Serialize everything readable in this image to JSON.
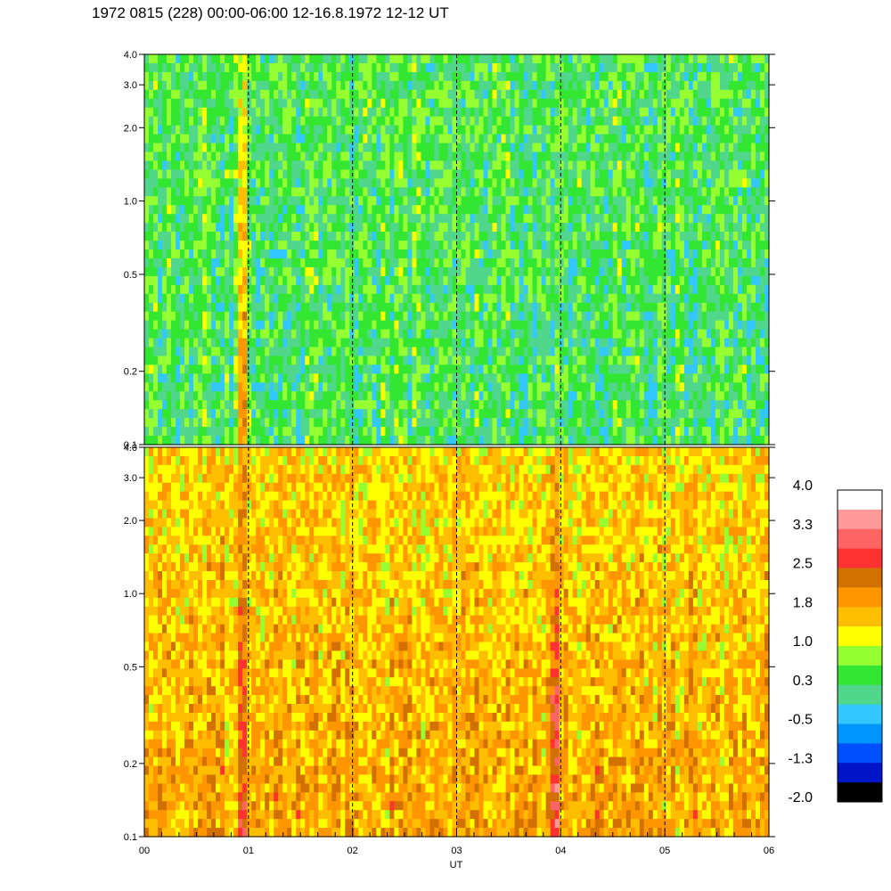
{
  "title": "1972 0815 (228) 00:00-06:00 12-16.8.1972  12-12 UT",
  "chart_data": {
    "type": "heatmap",
    "title": "1972 0815 (228) 00:00-06:00 12-16.8.1972  12-12 UT",
    "xlabel": "UT",
    "x_ticks": [
      "00",
      "01",
      "02",
      "03",
      "04",
      "05",
      "06"
    ],
    "x_range_hours": [
      0,
      6
    ],
    "marker_hours": [
      1,
      2,
      3,
      4,
      5
    ],
    "y_scale": "log",
    "ylim": [
      0.1,
      4.0
    ],
    "y_ticks": [
      0.1,
      0.2,
      0.5,
      1.0,
      2.0,
      3.0,
      4.0
    ],
    "y_tick_labels": [
      "0.1",
      "0.2",
      "0.5",
      "1.0",
      "2.0",
      "3.0",
      "4.0"
    ],
    "panels": [
      {
        "name": "upper",
        "typical_level_low_freq": 0.3,
        "typical_level_high_freq": 0.4,
        "features": [
          {
            "hour": 0.93,
            "level": 1.9
          }
        ]
      },
      {
        "name": "lower",
        "typical_level_low_freq": 1.8,
        "typical_level_high_freq": 1.4,
        "features": [
          {
            "hour": 0.93,
            "level": 2.8
          },
          {
            "hour": 3.93,
            "level": 2.7
          }
        ]
      }
    ],
    "colorbar": {
      "labels": [
        "4.0",
        "3.3",
        "2.5",
        "1.8",
        "1.0",
        "0.3",
        "-0.5",
        "-1.3",
        "-2.0"
      ],
      "range": [
        -2.0,
        4.0
      ],
      "colors": [
        "#ffffff",
        "#ff9a9a",
        "#ff6464",
        "#ff3232",
        "#d27000",
        "#ff9600",
        "#ffbe00",
        "#ffff00",
        "#96ff32",
        "#32e632",
        "#50d78c",
        "#32c8ff",
        "#0096ff",
        "#0050ff",
        "#0014c8",
        "#000000"
      ]
    }
  }
}
